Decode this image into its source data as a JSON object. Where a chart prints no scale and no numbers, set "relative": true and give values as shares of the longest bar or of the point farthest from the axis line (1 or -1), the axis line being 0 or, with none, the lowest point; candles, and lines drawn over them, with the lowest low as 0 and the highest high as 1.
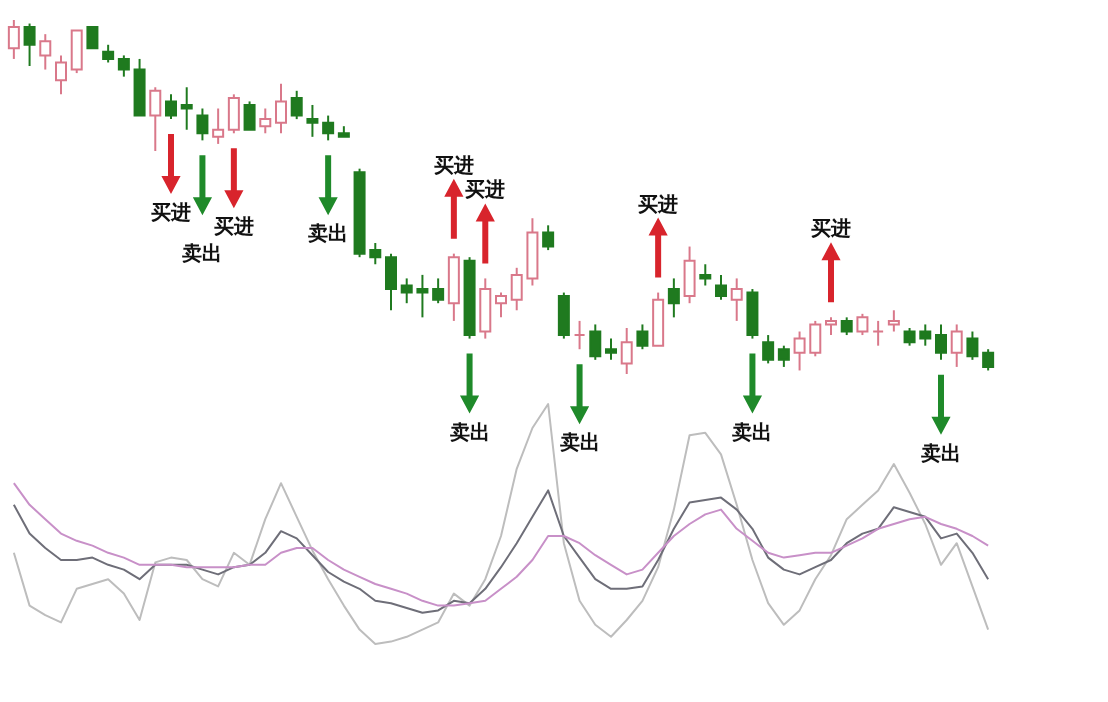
{
  "chart_data": [
    {
      "type": "candlestick",
      "relative": true,
      "categories": [
        null,
        null,
        null,
        null,
        null,
        null,
        null,
        null,
        null,
        null,
        null,
        null,
        null,
        null,
        null,
        null,
        null,
        null,
        null,
        null,
        null,
        null,
        null,
        null,
        null,
        null,
        null,
        null,
        null,
        null,
        null,
        null,
        null,
        null,
        null,
        null,
        null,
        null,
        null,
        null,
        null,
        null,
        null,
        null,
        null,
        null,
        null,
        null,
        null,
        null,
        null,
        null,
        null,
        null,
        null,
        null,
        null,
        null,
        null,
        null,
        null,
        null,
        null
      ],
      "ohlc": [
        [
          0.92,
          1,
          0.89,
          0.98
        ],
        [
          0.98,
          0.99,
          0.87,
          0.93
        ],
        [
          0.9,
          0.96,
          0.86,
          0.94
        ],
        [
          0.83,
          0.9,
          0.79,
          0.88
        ],
        [
          0.86,
          0.97,
          0.85,
          0.97
        ],
        [
          0.98,
          0.98,
          0.92,
          0.92
        ],
        [
          0.91,
          0.93,
          0.88,
          0.89
        ],
        [
          0.89,
          0.9,
          0.84,
          0.86
        ],
        [
          0.86,
          0.89,
          0.73,
          0.73
        ],
        [
          0.73,
          0.81,
          0.63,
          0.8
        ],
        [
          0.77,
          0.79,
          0.72,
          0.73
        ],
        [
          0.76,
          0.81,
          0.69,
          0.75
        ],
        [
          0.73,
          0.75,
          0.66,
          0.68
        ],
        [
          0.67,
          0.75,
          0.65,
          0.69
        ],
        [
          0.69,
          0.79,
          0.68,
          0.78
        ],
        [
          0.76,
          0.77,
          0.69,
          0.69
        ],
        [
          0.7,
          0.75,
          0.68,
          0.72
        ],
        [
          0.71,
          0.82,
          0.68,
          0.77
        ],
        [
          0.78,
          0.8,
          0.72,
          0.73
        ],
        [
          0.72,
          0.76,
          0.67,
          0.71
        ],
        [
          0.71,
          0.73,
          0.66,
          0.68
        ],
        [
          0.68,
          0.7,
          0.67,
          0.67
        ],
        [
          0.57,
          0.58,
          0.33,
          0.34
        ],
        [
          0.35,
          0.37,
          0.31,
          0.33
        ],
        [
          0.33,
          0.34,
          0.18,
          0.24
        ],
        [
          0.25,
          0.27,
          0.2,
          0.23
        ],
        [
          0.24,
          0.28,
          0.16,
          0.23
        ],
        [
          0.24,
          0.27,
          0.2,
          0.21
        ],
        [
          0.2,
          0.34,
          0.15,
          0.33
        ],
        [
          0.32,
          0.33,
          0.1,
          0.11
        ],
        [
          0.12,
          0.27,
          0.1,
          0.24
        ],
        [
          0.2,
          0.23,
          0.16,
          0.22
        ],
        [
          0.21,
          0.3,
          0.18,
          0.28
        ],
        [
          0.27,
          0.44,
          0.25,
          0.4
        ],
        [
          0.4,
          0.42,
          0.35,
          0.36
        ],
        [
          0.22,
          0.23,
          0.1,
          0.11
        ],
        [
          0.11,
          0.15,
          0.07,
          0.11
        ],
        [
          0.12,
          0.14,
          0.04,
          0.05
        ],
        [
          0.07,
          0.1,
          0.04,
          0.06
        ],
        [
          0.03,
          0.13,
          0,
          0.09
        ],
        [
          0.12,
          0.14,
          0.07,
          0.08
        ],
        [
          0.08,
          0.23,
          0.08,
          0.21
        ],
        [
          0.24,
          0.27,
          0.16,
          0.2
        ],
        [
          0.22,
          0.36,
          0.2,
          0.32
        ],
        [
          0.28,
          0.31,
          0.25,
          0.27
        ],
        [
          0.25,
          0.28,
          0.21,
          0.22
        ],
        [
          0.21,
          0.27,
          0.15,
          0.24
        ],
        [
          0.23,
          0.24,
          0.1,
          0.11
        ],
        [
          0.09,
          0.11,
          0.03,
          0.04
        ],
        [
          0.07,
          0.08,
          0.02,
          0.04
        ],
        [
          0.06,
          0.12,
          0.01,
          0.1
        ],
        [
          0.06,
          0.15,
          0.05,
          0.14
        ],
        [
          0.14,
          0.16,
          0.11,
          0.15
        ],
        [
          0.15,
          0.16,
          0.11,
          0.12
        ],
        [
          0.12,
          0.17,
          0.11,
          0.16
        ],
        [
          0.12,
          0.15,
          0.08,
          0.12
        ],
        [
          0.14,
          0.18,
          0.12,
          0.15
        ],
        [
          0.12,
          0.13,
          0.08,
          0.09
        ],
        [
          0.12,
          0.14,
          0.08,
          0.1
        ],
        [
          0.11,
          0.14,
          0.04,
          0.06
        ],
        [
          0.06,
          0.14,
          0.02,
          0.12
        ],
        [
          0.1,
          0.12,
          0.04,
          0.05
        ],
        [
          0.06,
          0.07,
          0.01,
          0.02
        ]
      ],
      "annotations": [
        "买进",
        "卖出",
        "买进",
        "卖出",
        "买进",
        "卖出",
        "买进",
        "卖出",
        "买进",
        "卖出",
        "买进",
        "卖出"
      ]
    },
    {
      "type": "line",
      "relative": true,
      "line_style": "solid",
      "categories": [
        null,
        null,
        null,
        null,
        null,
        null,
        null,
        null,
        null,
        null,
        null,
        null,
        null,
        null,
        null,
        null,
        null,
        null,
        null,
        null,
        null,
        null,
        null,
        null,
        null,
        null,
        null,
        null,
        null,
        null,
        null,
        null,
        null,
        null,
        null,
        null,
        null,
        null,
        null,
        null,
        null,
        null,
        null,
        null,
        null,
        null,
        null,
        null,
        null,
        null,
        null,
        null,
        null,
        null,
        null,
        null,
        null,
        null,
        null,
        null,
        null,
        null,
        null
      ],
      "series": [
        {
          "color": "#bdbdbd",
          "values": [
            0.38,
            0.16,
            0.12,
            0.09,
            0.23,
            0.25,
            0.27,
            0.21,
            0.1,
            0.34,
            0.36,
            0.35,
            0.27,
            0.24,
            0.38,
            0.33,
            0.52,
            0.67,
            0.53,
            0.39,
            0.27,
            0.16,
            0.06,
            0,
            0.01,
            0.03,
            0.06,
            0.09,
            0.21,
            0.16,
            0.27,
            0.45,
            0.73,
            0.9,
            1,
            0.42,
            0.18,
            0.08,
            0.03,
            0.1,
            0.18,
            0.32,
            0.56,
            0.87,
            0.88,
            0.79,
            0.58,
            0.35,
            0.17,
            0.08,
            0.14,
            0.27,
            0.37,
            0.52,
            0.58,
            0.64,
            0.75,
            0.63,
            0.5,
            0.33,
            0.42,
            0.24,
            0.06
          ]
        },
        {
          "color": "#6e6e78",
          "values": [
            0.58,
            0.46,
            0.4,
            0.35,
            0.35,
            0.36,
            0.33,
            0.31,
            0.27,
            0.33,
            0.33,
            0.33,
            0.31,
            0.29,
            0.32,
            0.33,
            0.38,
            0.47,
            0.44,
            0.37,
            0.3,
            0.26,
            0.23,
            0.18,
            0.17,
            0.15,
            0.13,
            0.14,
            0.18,
            0.17,
            0.23,
            0.32,
            0.42,
            0.53,
            0.64,
            0.45,
            0.36,
            0.27,
            0.23,
            0.23,
            0.24,
            0.35,
            0.48,
            0.59,
            0.6,
            0.61,
            0.56,
            0.48,
            0.36,
            0.31,
            0.29,
            0.32,
            0.35,
            0.42,
            0.46,
            0.48,
            0.57,
            0.55,
            0.53,
            0.44,
            0.46,
            0.38,
            0.27
          ]
        },
        {
          "color": "#c890c8",
          "values": [
            0.67,
            0.58,
            0.52,
            0.46,
            0.43,
            0.41,
            0.38,
            0.36,
            0.33,
            0.33,
            0.33,
            0.32,
            0.32,
            0.32,
            0.32,
            0.33,
            0.33,
            0.38,
            0.4,
            0.4,
            0.35,
            0.31,
            0.28,
            0.25,
            0.23,
            0.21,
            0.18,
            0.16,
            0.16,
            0.17,
            0.18,
            0.23,
            0.28,
            0.35,
            0.45,
            0.45,
            0.42,
            0.37,
            0.33,
            0.29,
            0.31,
            0.38,
            0.45,
            0.5,
            0.54,
            0.56,
            0.48,
            0.43,
            0.38,
            0.36,
            0.37,
            0.38,
            0.38,
            0.41,
            0.44,
            0.48,
            0.5,
            0.52,
            0.53,
            0.5,
            0.48,
            0.45,
            0.41
          ]
        }
      ]
    }
  ]
}
